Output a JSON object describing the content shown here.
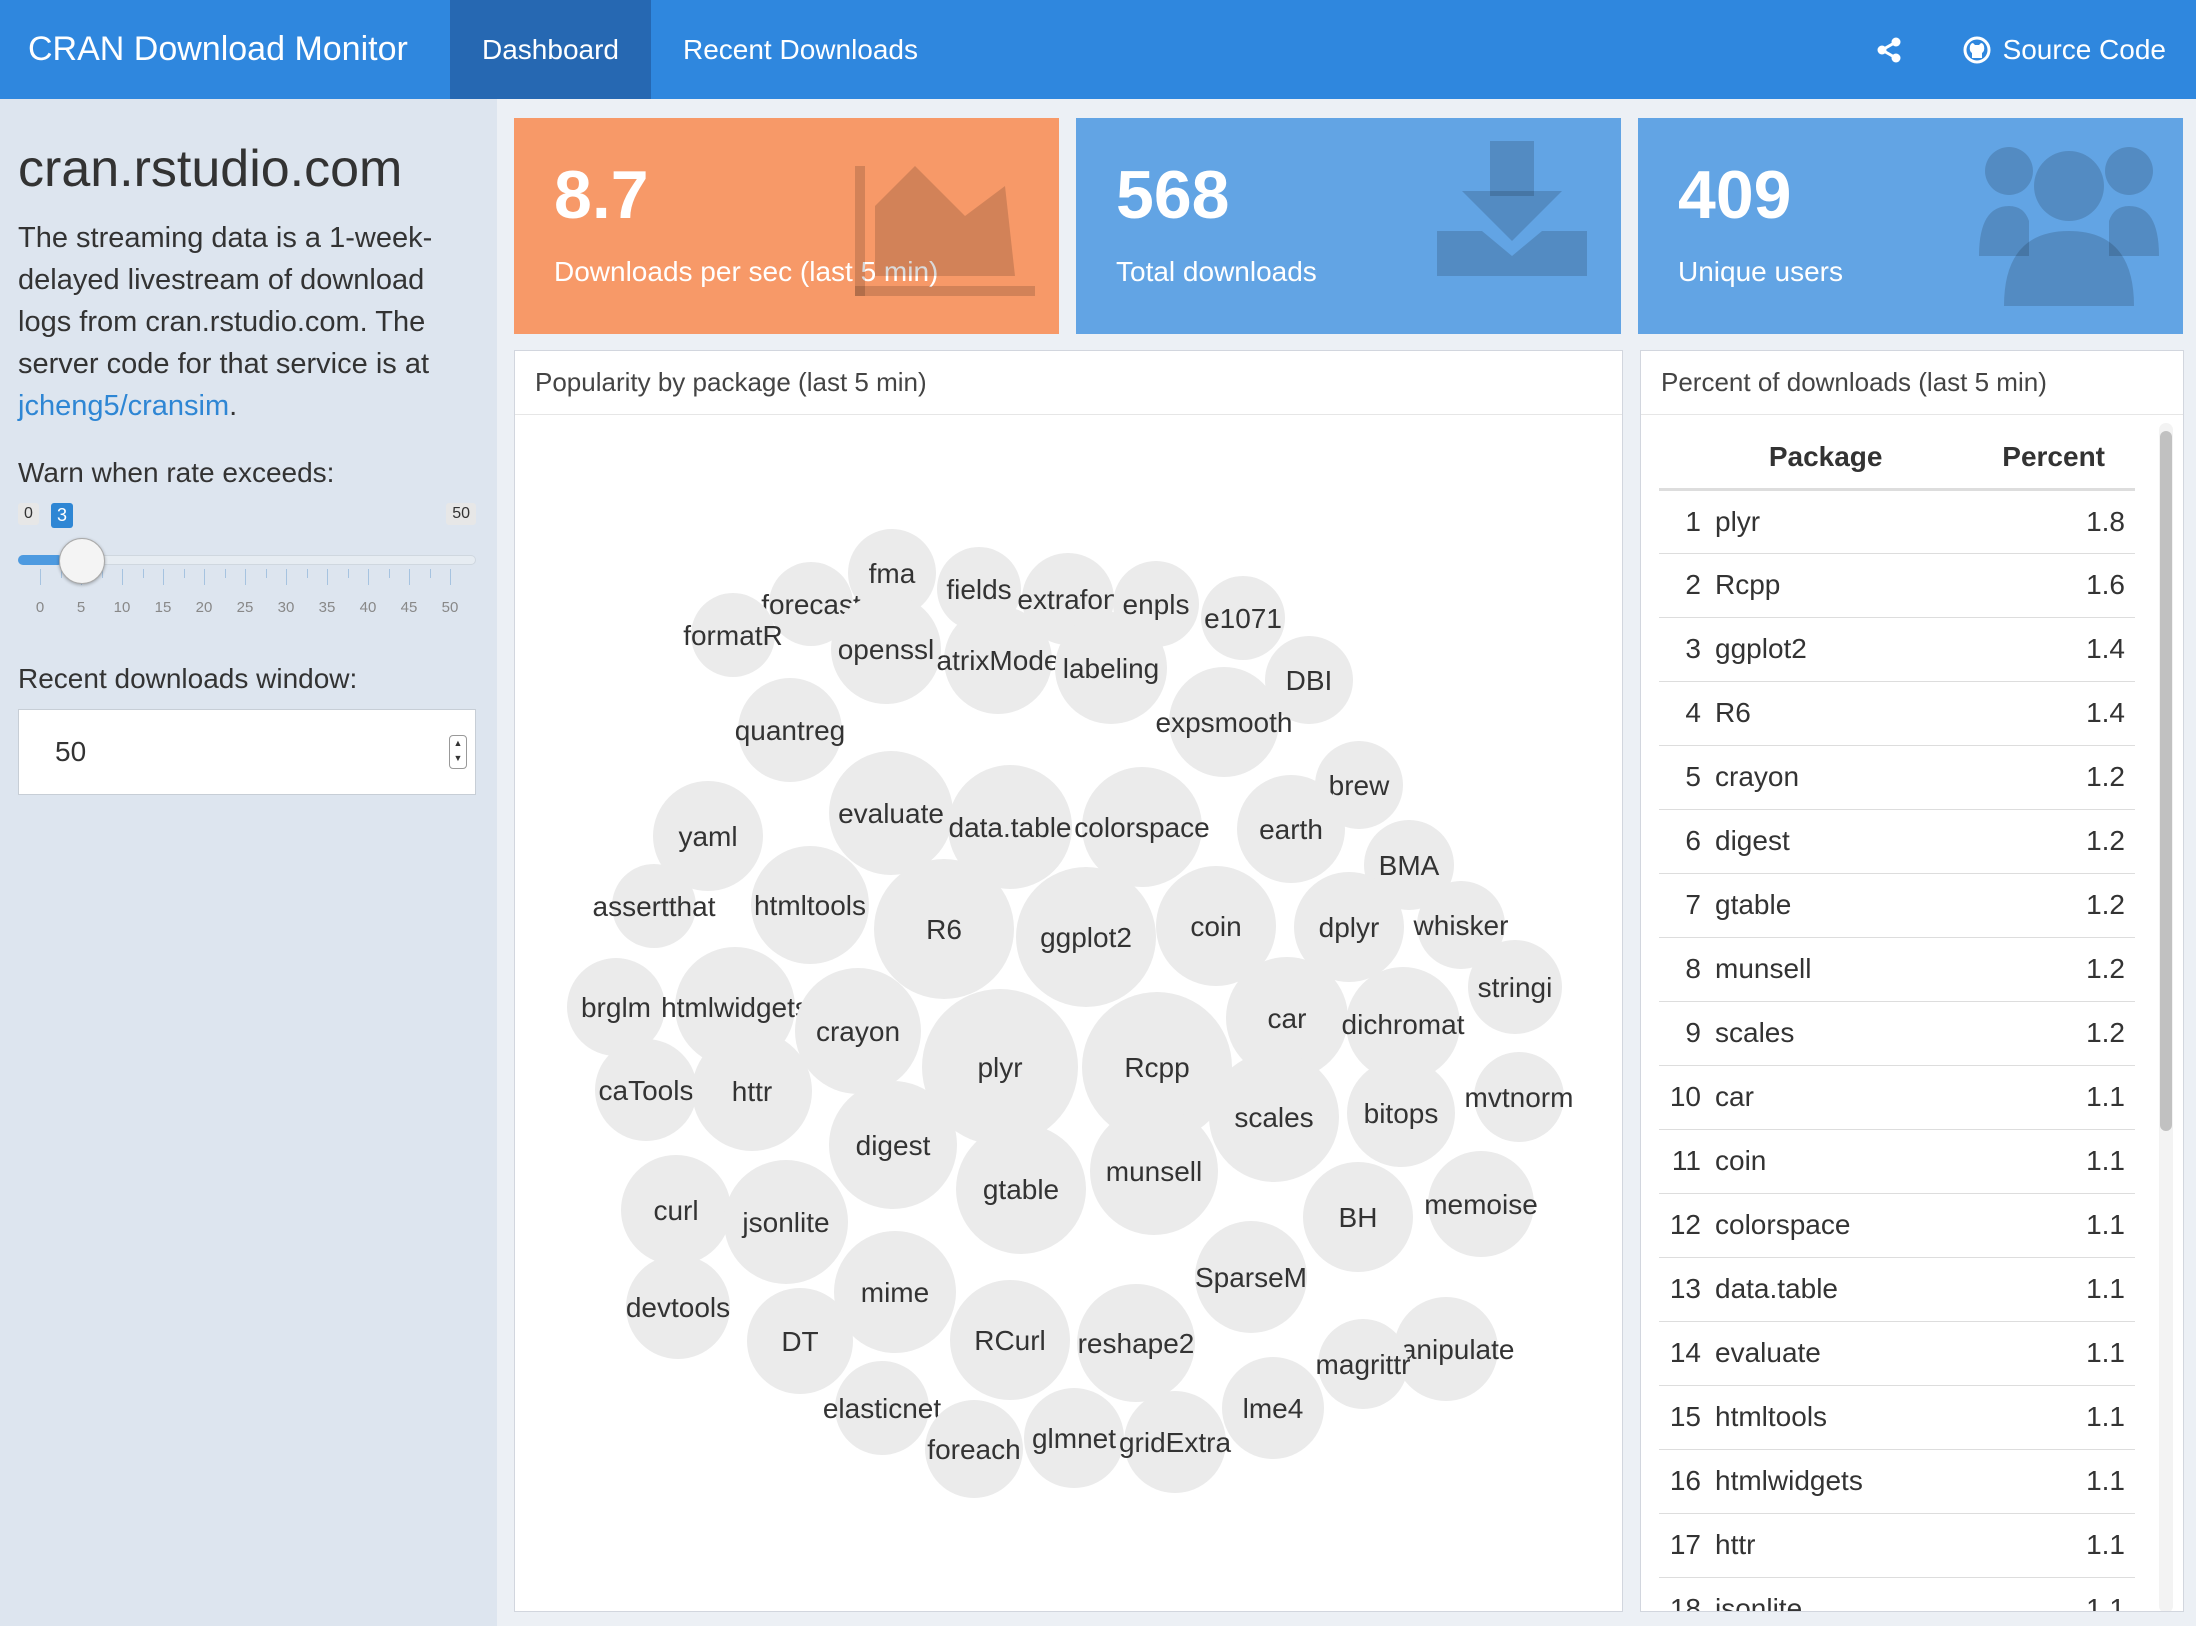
{
  "header": {
    "app_title": "CRAN Download Monitor",
    "tabs": [
      {
        "label": "Dashboard",
        "active": true
      },
      {
        "label": "Recent Downloads",
        "active": false
      }
    ],
    "share_icon": "share-icon",
    "source_code_label": "Source Code"
  },
  "sidebar": {
    "title": "cran.rstudio.com",
    "description_pre": "The streaming data is a 1-week-delayed livestream of download logs from cran.rstudio.com. The server code for that service is at ",
    "description_link": "jcheng5/cransim",
    "description_post": ".",
    "rate_label": "Warn when rate exceeds:",
    "slider": {
      "min": "0",
      "max": "50",
      "value": "3",
      "tick_labels": [
        "0",
        "5",
        "10",
        "15",
        "20",
        "25",
        "30",
        "35",
        "40",
        "45",
        "50"
      ]
    },
    "window_label": "Recent downloads window:",
    "window_value": "50"
  },
  "value_boxes": [
    {
      "value": "8.7",
      "label": "Downloads per sec (last 5 min)",
      "icon": "area-chart-icon",
      "color": "#f79968"
    },
    {
      "value": "568",
      "label": "Total downloads",
      "icon": "download-icon",
      "color": "#62a4e4"
    },
    {
      "value": "409",
      "label": "Unique users",
      "icon": "users-icon",
      "color": "#62a4e4"
    }
  ],
  "bubble_panel": {
    "title": "Popularity by package (last 5 min)",
    "bubbles": [
      {
        "label": "fma"
      },
      {
        "label": "fields"
      },
      {
        "label": "extrafon"
      },
      {
        "label": "enpls"
      },
      {
        "label": "e1071"
      },
      {
        "label": "forecast"
      },
      {
        "label": "formatR"
      },
      {
        "label": "openssl"
      },
      {
        "label": "atrixMode"
      },
      {
        "label": "labeling"
      },
      {
        "label": "DBI"
      },
      {
        "label": "expsmooth"
      },
      {
        "label": "quantreg"
      },
      {
        "label": "brew"
      },
      {
        "label": "evaluate"
      },
      {
        "label": "data.table"
      },
      {
        "label": "colorspace"
      },
      {
        "label": "earth"
      },
      {
        "label": "yaml"
      },
      {
        "label": "BMA"
      },
      {
        "label": "htmltools"
      },
      {
        "label": "assertthat"
      },
      {
        "label": "R6"
      },
      {
        "label": "ggplot2"
      },
      {
        "label": "coin"
      },
      {
        "label": "dplyr"
      },
      {
        "label": "whisker"
      },
      {
        "label": "brglm"
      },
      {
        "label": "htmlwidgets"
      },
      {
        "label": "crayon"
      },
      {
        "label": "car"
      },
      {
        "label": "dichromat"
      },
      {
        "label": "stringi"
      },
      {
        "label": "plyr"
      },
      {
        "label": "Rcpp"
      },
      {
        "label": "caTools"
      },
      {
        "label": "httr"
      },
      {
        "label": "scales"
      },
      {
        "label": "bitops"
      },
      {
        "label": "mvtnorm"
      },
      {
        "label": "digest"
      },
      {
        "label": "curl"
      },
      {
        "label": "gtable"
      },
      {
        "label": "munsell"
      },
      {
        "label": "memoise"
      },
      {
        "label": "jsonlite"
      },
      {
        "label": "BH"
      },
      {
        "label": "SparseM"
      },
      {
        "label": "mime"
      },
      {
        "label": "devtools"
      },
      {
        "label": "manipulate"
      },
      {
        "label": "DT"
      },
      {
        "label": "RCurl"
      },
      {
        "label": "reshape2"
      },
      {
        "label": "magrittr"
      },
      {
        "label": "lme4"
      },
      {
        "label": "elasticnet"
      },
      {
        "label": "glmnet"
      },
      {
        "label": "gridExtra"
      },
      {
        "label": "foreach"
      }
    ]
  },
  "table_panel": {
    "title": "Percent of downloads (last 5 min)",
    "columns": [
      "Package",
      "Percent"
    ],
    "rows": [
      {
        "idx": "1",
        "name": "plyr",
        "pct": "1.8"
      },
      {
        "idx": "2",
        "name": "Rcpp",
        "pct": "1.6"
      },
      {
        "idx": "3",
        "name": "ggplot2",
        "pct": "1.4"
      },
      {
        "idx": "4",
        "name": "R6",
        "pct": "1.4"
      },
      {
        "idx": "5",
        "name": "crayon",
        "pct": "1.2"
      },
      {
        "idx": "6",
        "name": "digest",
        "pct": "1.2"
      },
      {
        "idx": "7",
        "name": "gtable",
        "pct": "1.2"
      },
      {
        "idx": "8",
        "name": "munsell",
        "pct": "1.2"
      },
      {
        "idx": "9",
        "name": "scales",
        "pct": "1.2"
      },
      {
        "idx": "10",
        "name": "car",
        "pct": "1.1"
      },
      {
        "idx": "11",
        "name": "coin",
        "pct": "1.1"
      },
      {
        "idx": "12",
        "name": "colorspace",
        "pct": "1.1"
      },
      {
        "idx": "13",
        "name": "data.table",
        "pct": "1.1"
      },
      {
        "idx": "14",
        "name": "evaluate",
        "pct": "1.1"
      },
      {
        "idx": "15",
        "name": "htmltools",
        "pct": "1.1"
      },
      {
        "idx": "16",
        "name": "htmlwidgets",
        "pct": "1.1"
      },
      {
        "idx": "17",
        "name": "httr",
        "pct": "1.1"
      },
      {
        "idx": "18",
        "name": "jsonlite",
        "pct": "1.1"
      }
    ]
  }
}
